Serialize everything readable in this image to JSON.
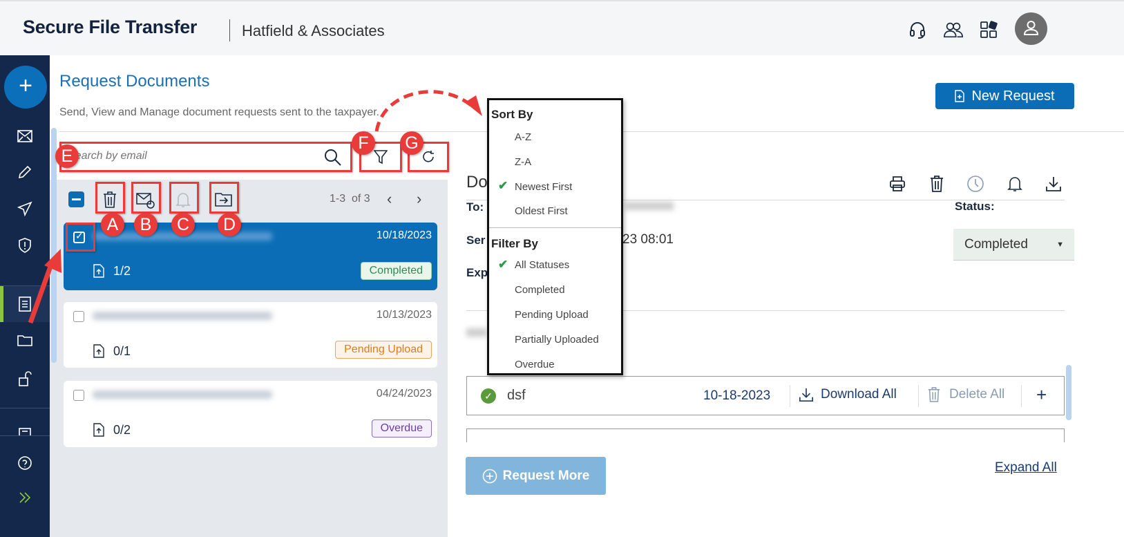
{
  "header": {
    "app_title": "Secure File Transfer",
    "firm": "Hatfield & Associates",
    "icons": [
      "headset-icon",
      "users-icon",
      "apps-icon",
      "avatar-icon"
    ]
  },
  "sidebar": {
    "items": [
      "new-icon",
      "mail-icon",
      "edit-icon",
      "send-icon",
      "shield-icon",
      "document-icon",
      "folder-icon",
      "unlock-icon",
      "form-icon",
      "help-icon",
      "expand-icon"
    ],
    "active": "document-icon"
  },
  "page": {
    "title": "Request Documents",
    "subtitle": "Send, View and Manage document requests sent to the taxpayer.",
    "new_request": "New Request"
  },
  "search": {
    "placeholder": "Search by email"
  },
  "list": {
    "pagination": "1-3  of 3",
    "items": [
      {
        "date": "10/18/2023",
        "count": "1/2",
        "status": "Completed",
        "selected": true
      },
      {
        "date": "10/13/2023",
        "count": "0/1",
        "status": "Pending Upload",
        "selected": false
      },
      {
        "date": "04/24/2023",
        "count": "0/2",
        "status": "Overdue",
        "selected": false
      }
    ]
  },
  "annotations": {
    "a": "A",
    "b": "B",
    "c": "C",
    "d": "D",
    "e": "E",
    "f": "F",
    "g": "G"
  },
  "menu": {
    "sort_title": "Sort By",
    "sort": [
      "A-Z",
      "Z-A",
      "Newest First",
      "Oldest First"
    ],
    "sort_selected": "Newest First",
    "filter_title": "Filter By",
    "filter": [
      "All Statuses",
      "Completed",
      "Pending Upload",
      "Partially Uploaded",
      "Overdue"
    ],
    "filter_selected": "All Statuses"
  },
  "detail": {
    "title_partial": "Do",
    "to_label": "To:",
    "sent_label": "Ser",
    "sent_value": "23 08:01",
    "exp_label": "Exp",
    "status_label": "Status:",
    "status_value": "Completed",
    "doc_row": {
      "name": "dsf",
      "date": "10-18-2023",
      "download": "Download All",
      "delete": "Delete All"
    },
    "request_more": "Request More",
    "expand_all": "Expand All"
  },
  "colors": {
    "primary": "#0b6db5",
    "sidebar": "#13284a",
    "annotation": "#ea3b3b",
    "completed": "#2e8b57",
    "pending": "#e07b1a",
    "overdue": "#6a3fa0"
  }
}
